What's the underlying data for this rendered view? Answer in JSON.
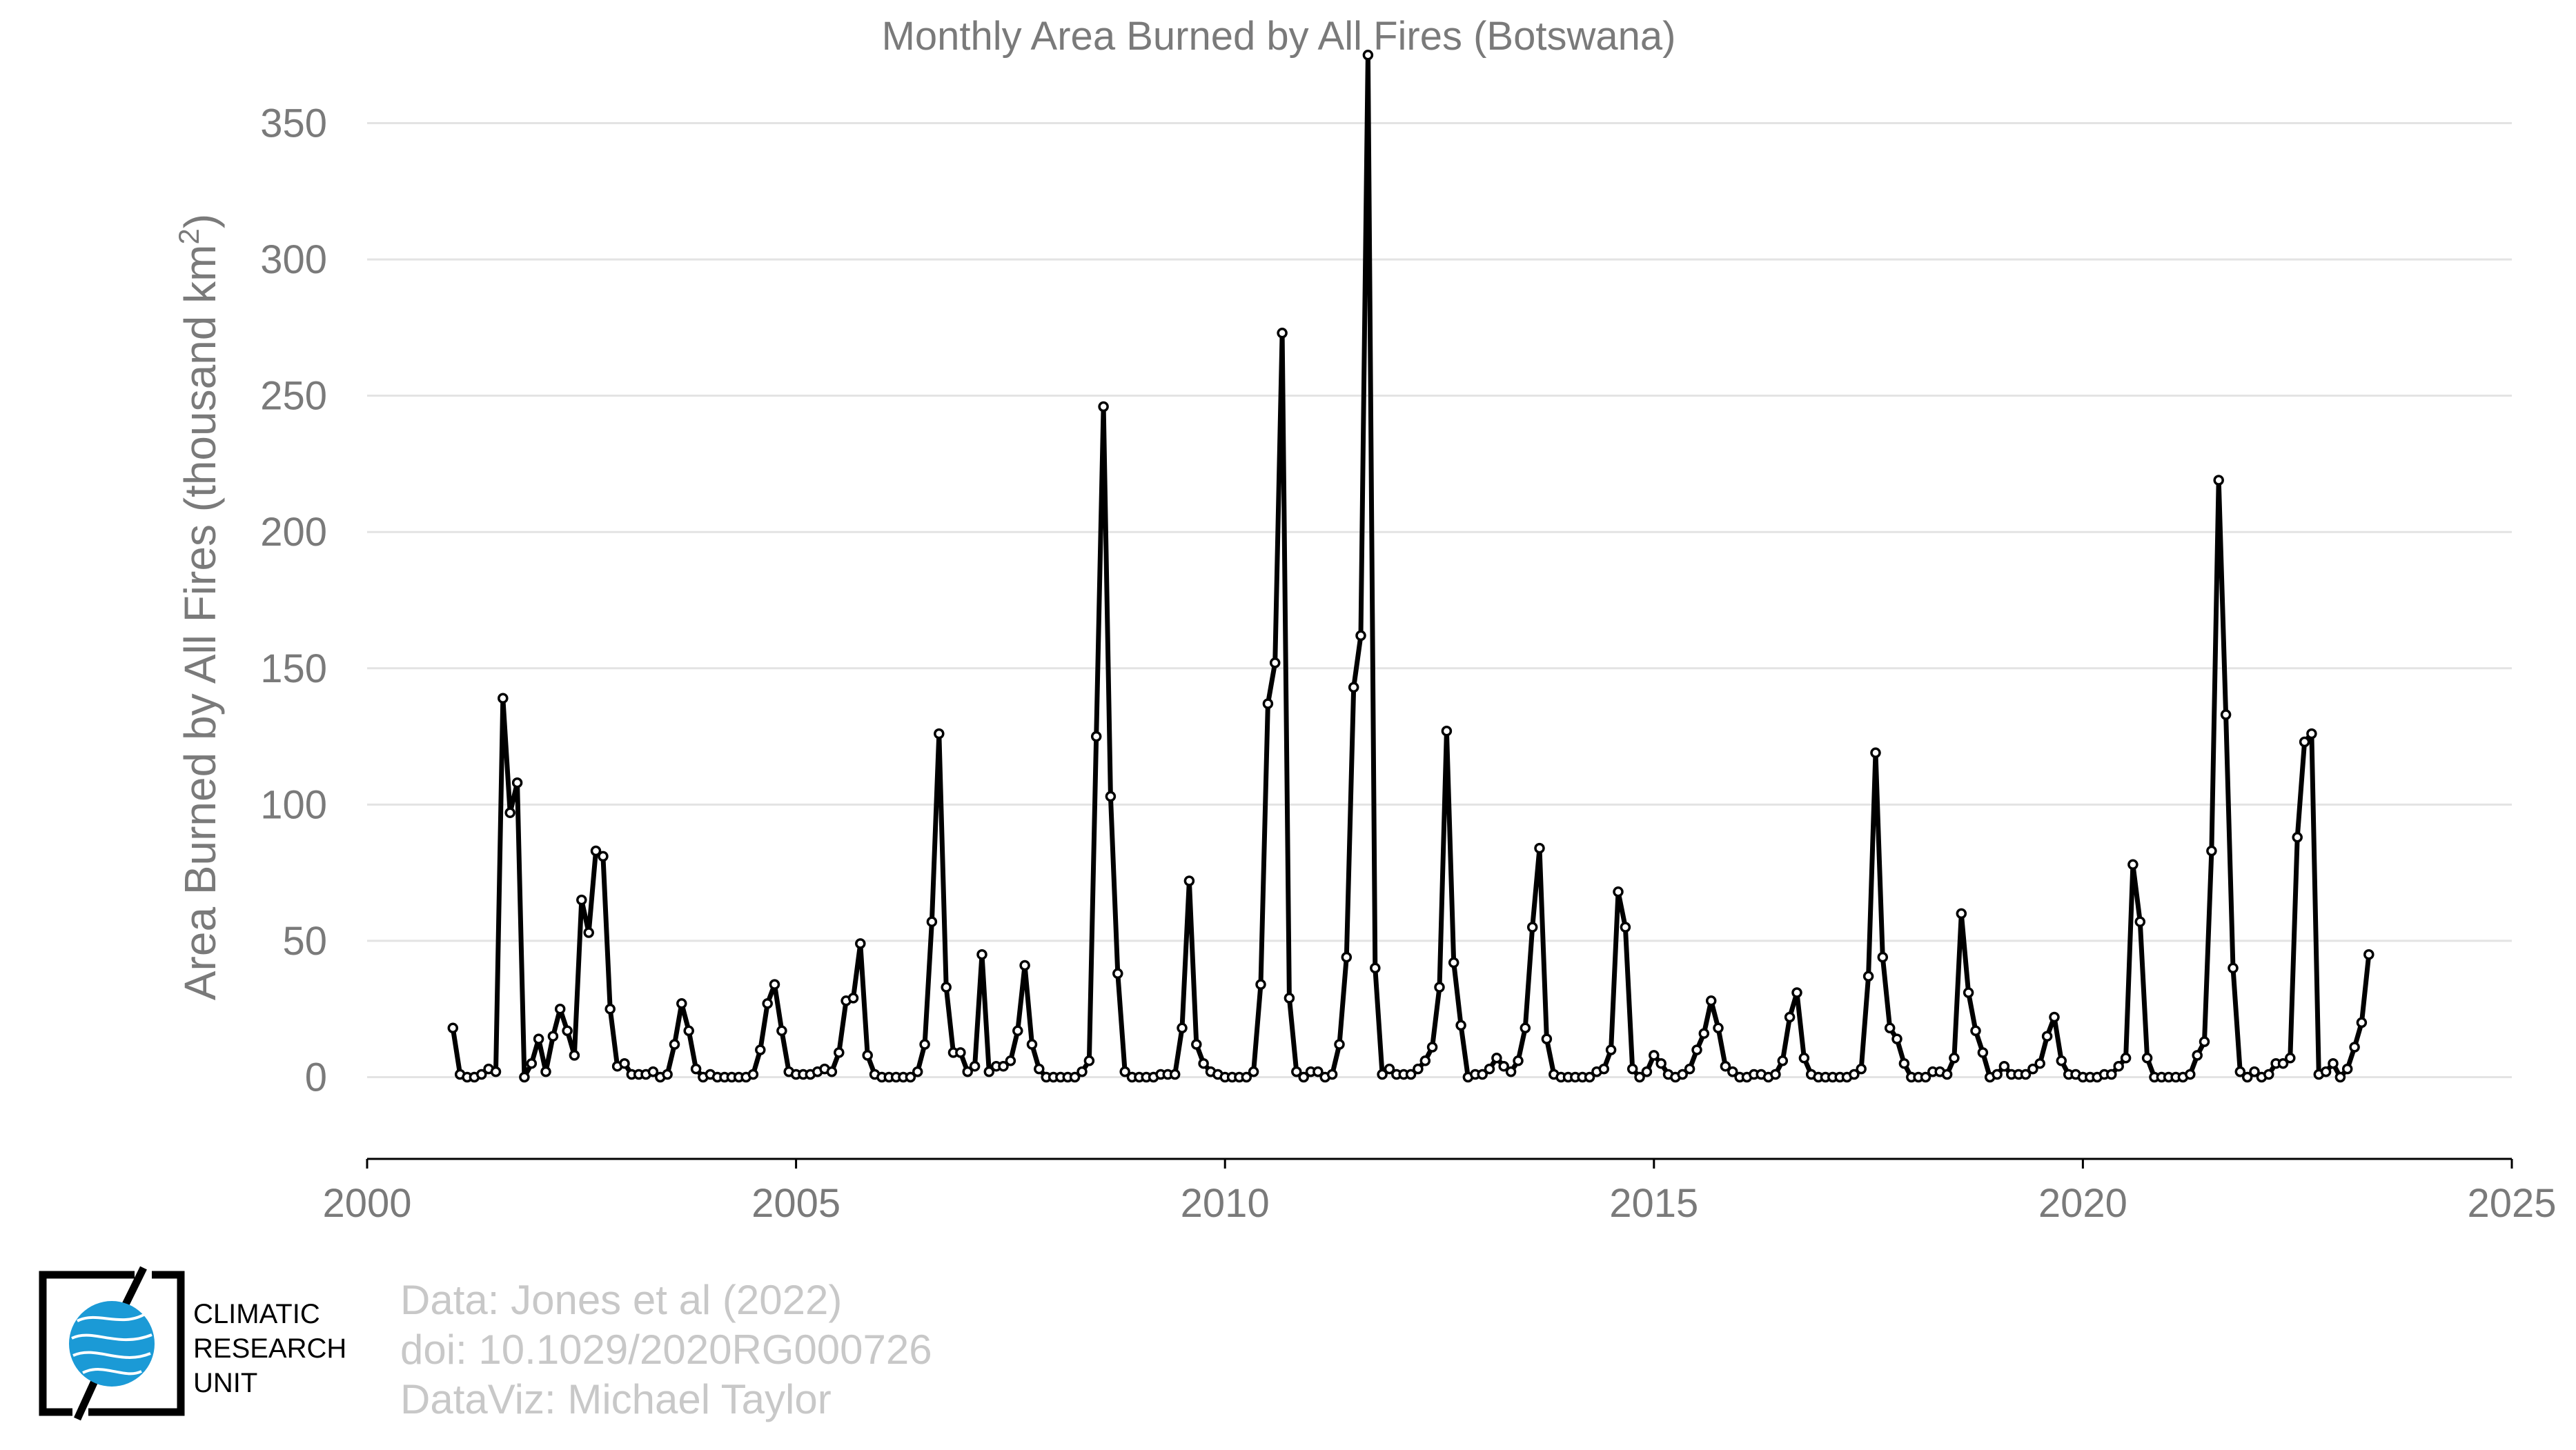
{
  "chart_data": {
    "type": "line",
    "title": "Monthly Area Burned by All Fires (Botswana)",
    "ylabel": "Area Burned by All Fires (thousand km",
    "ylabel_superscript": "2",
    "ylabel_suffix": ")",
    "xlabel": "",
    "xlim": [
      2000,
      2025
    ],
    "ylim": [
      -30,
      380
    ],
    "xticks": [
      2000,
      2005,
      2010,
      2015,
      2020,
      2025
    ],
    "yticks": [
      0,
      50,
      100,
      150,
      200,
      250,
      300,
      350
    ],
    "grid": "horizontal",
    "legend": "none",
    "series": [
      {
        "color": "#000000",
        "start_year": 2001,
        "start_month": 1,
        "monthly_values": [
          18,
          1,
          0,
          0,
          1,
          3,
          2,
          139,
          97,
          108,
          0,
          5,
          14,
          2,
          15,
          25,
          17,
          8,
          65,
          53,
          83,
          81,
          25,
          4,
          5,
          1,
          1,
          1,
          2,
          0,
          1,
          12,
          27,
          17,
          3,
          0,
          1,
          0,
          0,
          0,
          0,
          0,
          1,
          10,
          27,
          34,
          17,
          2,
          1,
          1,
          1,
          2,
          3,
          2,
          9,
          28,
          29,
          49,
          8,
          1,
          0,
          0,
          0,
          0,
          0,
          2,
          12,
          57,
          126,
          33,
          9,
          9,
          2,
          4,
          45,
          2,
          4,
          4,
          6,
          17,
          41,
          12,
          3,
          0,
          0,
          0,
          0,
          0,
          2,
          6,
          125,
          246,
          103,
          38,
          2,
          0,
          0,
          0,
          0,
          1,
          1,
          1,
          18,
          72,
          12,
          5,
          2,
          1,
          0,
          0,
          0,
          0,
          2,
          34,
          137,
          152,
          273,
          29,
          2,
          0,
          2,
          2,
          0,
          1,
          12,
          44,
          143,
          162,
          375,
          40,
          1,
          3,
          1,
          1,
          1,
          3,
          6,
          11,
          33,
          127,
          42,
          19,
          0,
          1,
          1,
          3,
          7,
          4,
          2,
          6,
          18,
          55,
          84,
          14,
          1,
          0,
          0,
          0,
          0,
          0,
          2,
          3,
          10,
          68,
          55,
          3,
          0,
          2,
          8,
          5,
          1,
          0,
          1,
          3,
          10,
          16,
          28,
          18,
          4,
          2,
          0,
          0,
          1,
          1,
          0,
          1,
          6,
          22,
          31,
          7,
          1,
          0,
          0,
          0,
          0,
          0,
          1,
          3,
          37,
          119,
          44,
          18,
          14,
          5,
          0,
          0,
          0,
          2,
          2,
          1,
          7,
          60,
          31,
          17,
          9,
          0,
          1,
          4,
          1,
          1,
          1,
          3,
          5,
          15,
          22,
          6,
          1,
          1,
          0,
          0,
          0,
          1,
          1,
          4,
          7,
          78,
          57,
          7,
          0,
          0,
          0,
          0,
          0,
          1,
          8,
          13,
          83,
          219,
          133,
          40,
          2,
          0,
          2,
          0,
          1,
          5,
          5,
          7,
          88,
          123,
          126,
          1,
          2,
          5,
          0,
          3,
          11,
          20,
          45
        ]
      }
    ]
  },
  "credits": {
    "line1": "Data: Jones et al (2022)",
    "line2": "doi: 10.1029/2020RG000726",
    "line3": "DataViz: Michael Taylor"
  },
  "logo": {
    "line1": "CLIMATIC",
    "line2": "RESEARCH",
    "line3": "UNIT",
    "color": "#1b9ad6",
    "icon": "globe-icon"
  }
}
